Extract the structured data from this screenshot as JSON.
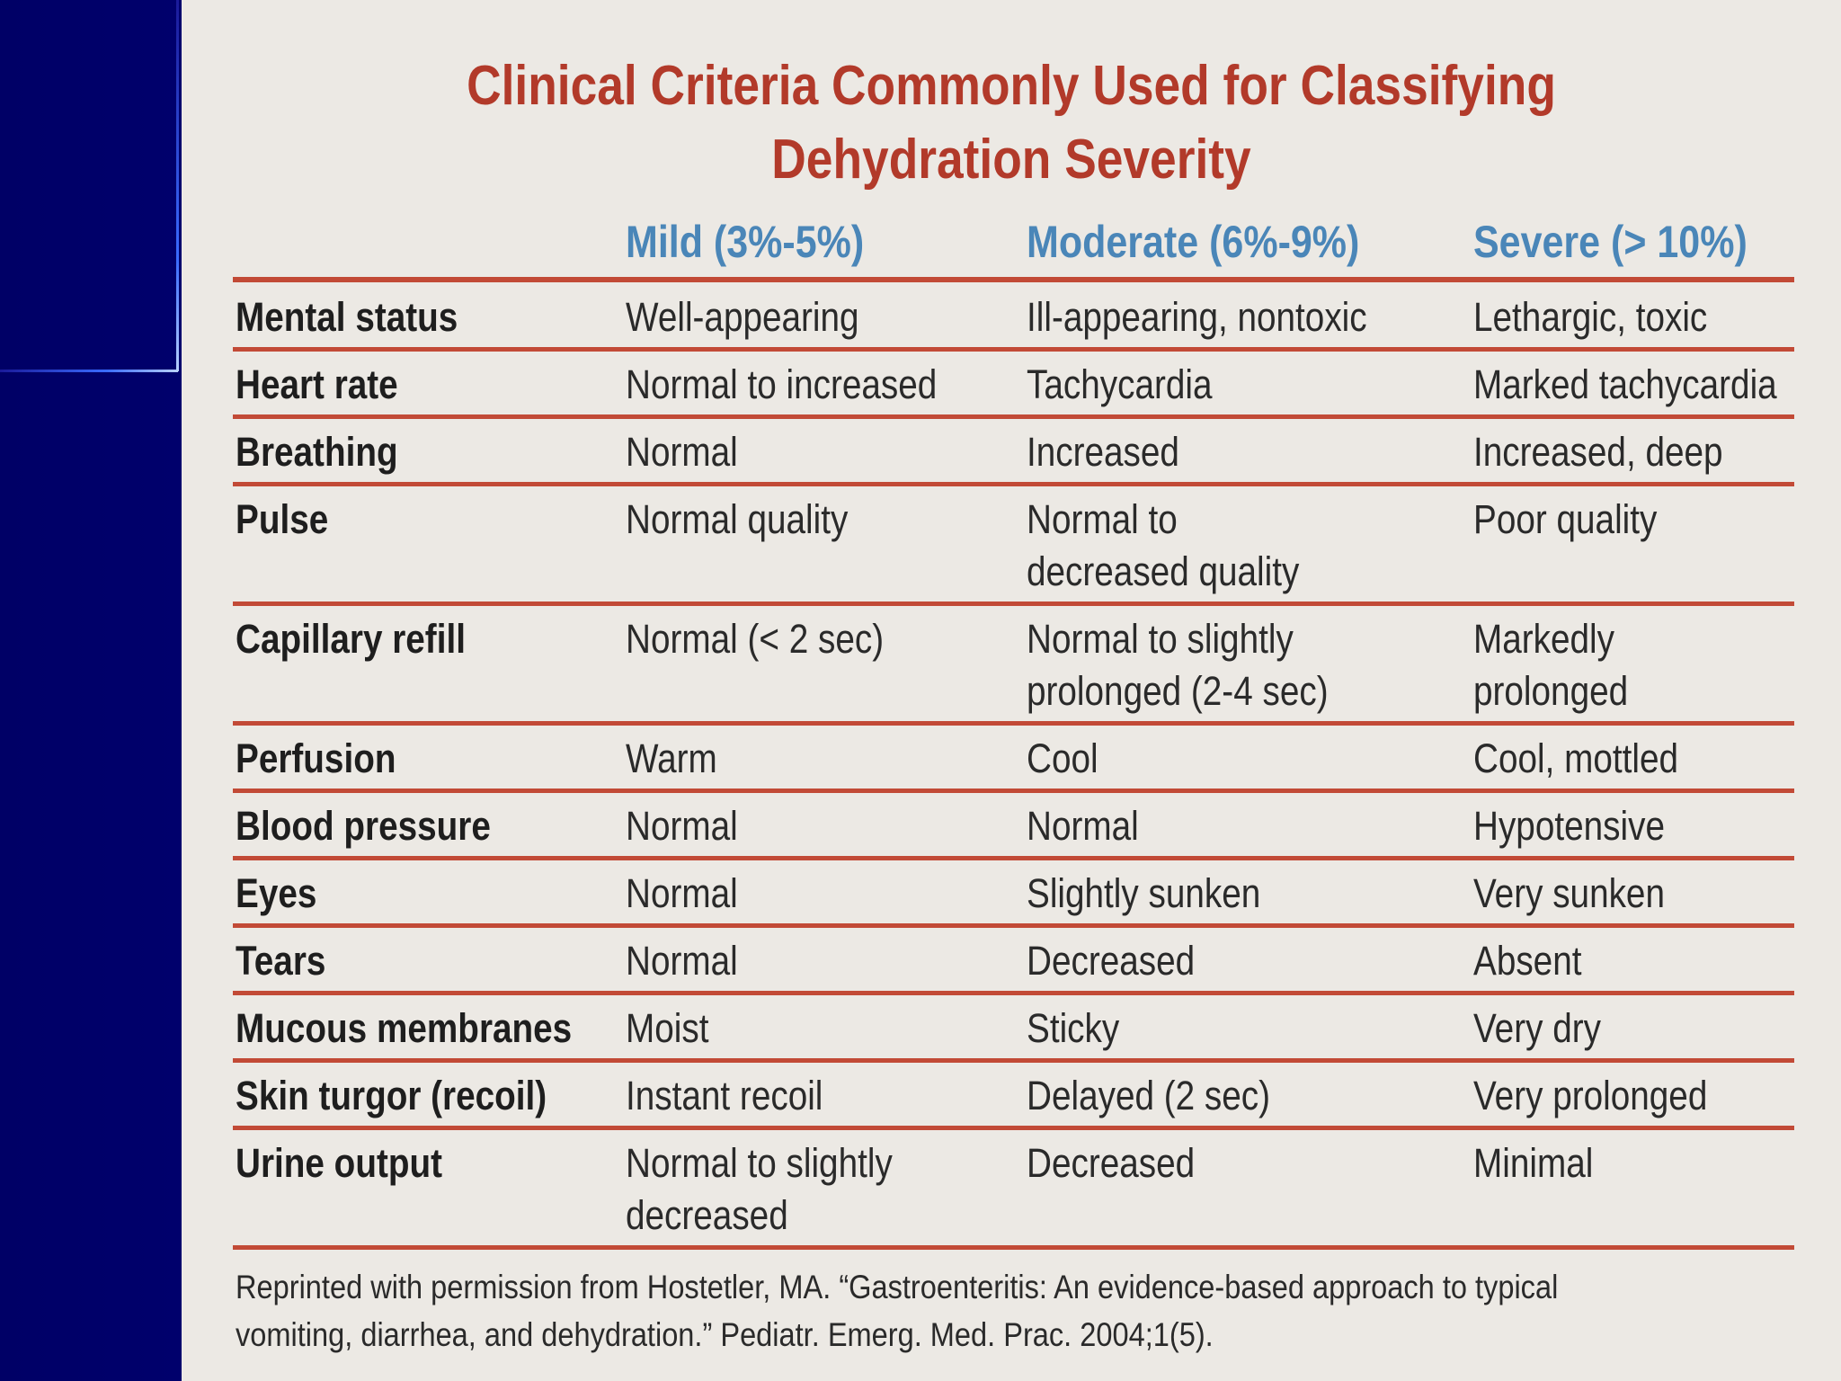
{
  "title": {
    "line1": "Clinical Criteria Commonly Used for Classifying",
    "line2": "Dehydration Severity"
  },
  "columns": [
    "Mild (3%-5%)",
    "Moderate (6%-9%)",
    "Severe (> 10%)"
  ],
  "rows": [
    {
      "label": "Mental status",
      "mild": [
        "Well-appearing"
      ],
      "moderate": [
        "Ill-appearing, nontoxic"
      ],
      "severe": [
        "Lethargic, toxic"
      ]
    },
    {
      "label": "Heart rate",
      "mild": [
        "Normal to increased"
      ],
      "moderate": [
        "Tachycardia"
      ],
      "severe": [
        "Marked tachycardia"
      ]
    },
    {
      "label": "Breathing",
      "mild": [
        "Normal"
      ],
      "moderate": [
        "Increased"
      ],
      "severe": [
        "Increased, deep"
      ]
    },
    {
      "label": "Pulse",
      "mild": [
        "Normal quality"
      ],
      "moderate": [
        "Normal to",
        "decreased quality"
      ],
      "severe": [
        "Poor quality"
      ]
    },
    {
      "label": "Capillary refill",
      "mild": [
        "Normal (< 2 sec)"
      ],
      "moderate": [
        "Normal to slightly",
        "prolonged (2-4 sec)"
      ],
      "severe": [
        "Markedly",
        "prolonged"
      ]
    },
    {
      "label": "Perfusion",
      "mild": [
        "Warm"
      ],
      "moderate": [
        "Cool"
      ],
      "severe": [
        "Cool, mottled"
      ]
    },
    {
      "label": "Blood pressure",
      "mild": [
        "Normal"
      ],
      "moderate": [
        "Normal"
      ],
      "severe": [
        "Hypotensive"
      ]
    },
    {
      "label": "Eyes",
      "mild": [
        "Normal"
      ],
      "moderate": [
        "Slightly sunken"
      ],
      "severe": [
        "Very sunken"
      ]
    },
    {
      "label": "Tears",
      "mild": [
        "Normal"
      ],
      "moderate": [
        "Decreased"
      ],
      "severe": [
        "Absent"
      ]
    },
    {
      "label": "Mucous membranes",
      "mild": [
        "Moist"
      ],
      "moderate": [
        "Sticky"
      ],
      "severe": [
        "Very dry"
      ]
    },
    {
      "label": "Skin turgor (recoil)",
      "mild": [
        "Instant recoil"
      ],
      "moderate": [
        "Delayed (2 sec)"
      ],
      "severe": [
        "Very prolonged"
      ]
    },
    {
      "label": "Urine output",
      "mild": [
        "Normal to slightly",
        "decreased"
      ],
      "moderate": [
        "Decreased"
      ],
      "severe": [
        "Minimal"
      ]
    }
  ],
  "footnote": {
    "line1": "Reprinted with permission from Hostetler, MA. “Gastroenteritis: An evidence-based approach to typical",
    "line2": "vomiting, diarrhea, and dehydration.” Pediatr. Emerg. Med. Prac. 2004;1(5)."
  },
  "colors": {
    "title": "#b23a2a",
    "header": "#4a86b8",
    "rule": "#c24a36",
    "panel": "#ece9e4",
    "background": "#00007a"
  }
}
